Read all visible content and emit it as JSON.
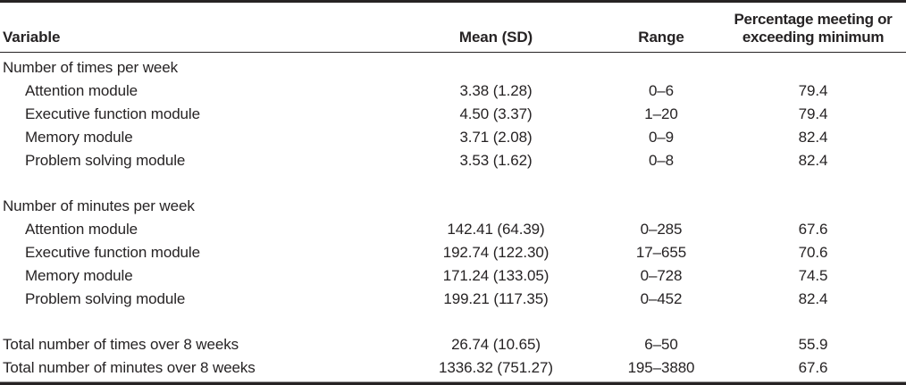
{
  "colors": {
    "background": "#ffffff",
    "text": "#262324",
    "rule_dark": "#262324",
    "rule_light": "#989898"
  },
  "table": {
    "columns": [
      {
        "label": "Variable"
      },
      {
        "label": "Mean (SD)"
      },
      {
        "label": "Range"
      },
      {
        "label": "Percentage meeting or\nexceeding minimum"
      }
    ],
    "sections": [
      {
        "header": "Number of times per week",
        "rows": [
          {
            "variable": "Attention module",
            "mean_sd": "3.38 (1.28)",
            "range": "0–6",
            "pct": "79.4"
          },
          {
            "variable": "Executive function module",
            "mean_sd": "4.50 (3.37)",
            "range": "1–20",
            "pct": "79.4"
          },
          {
            "variable": "Memory module",
            "mean_sd": "3.71 (2.08)",
            "range": "0–9",
            "pct": "82.4"
          },
          {
            "variable": "Problem solving module",
            "mean_sd": "3.53 (1.62)",
            "range": "0–8",
            "pct": "82.4"
          }
        ]
      },
      {
        "header": "Number of minutes per week",
        "rows": [
          {
            "variable": "Attention module",
            "mean_sd": "142.41 (64.39)",
            "range": "0–285",
            "pct": "67.6"
          },
          {
            "variable": "Executive function module",
            "mean_sd": "192.74 (122.30)",
            "range": "17–655",
            "pct": "70.6"
          },
          {
            "variable": "Memory module",
            "mean_sd": "171.24 (133.05)",
            "range": "0–728",
            "pct": "74.5"
          },
          {
            "variable": "Problem solving module",
            "mean_sd": "199.21 (117.35)",
            "range": "0–452",
            "pct": "82.4"
          }
        ]
      }
    ],
    "totals": [
      {
        "variable": "Total number of times over 8 weeks",
        "mean_sd": "26.74 (10.65)",
        "range": "6–50",
        "pct": "55.9"
      },
      {
        "variable": "Total number of minutes over 8 weeks",
        "mean_sd": "1336.32 (751.27)",
        "range": "195–3880",
        "pct": "67.6"
      }
    ]
  }
}
